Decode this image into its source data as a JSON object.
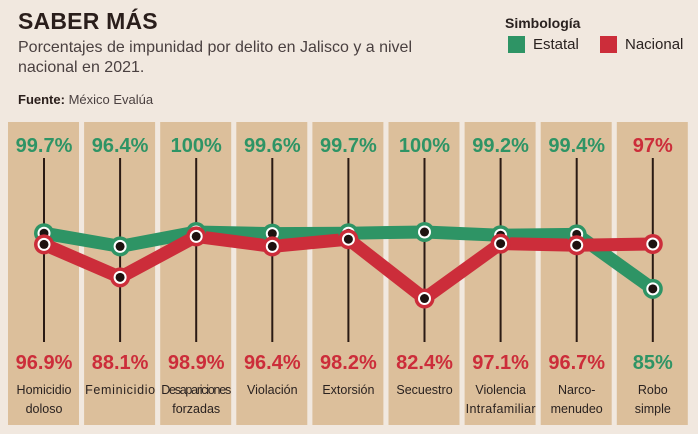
{
  "header": {
    "title": "SABER MÁS",
    "subtitle": "Porcentajes de impunidad por delito en Jalisco y a nivel nacional en 2021.",
    "source_label": "Fuente:",
    "source_value": "México Evalúa"
  },
  "legend": {
    "title": "Simbología",
    "items": [
      {
        "label": "Estatal",
        "color": "#2e9465"
      },
      {
        "label": "Nacional",
        "color": "#cc2d3a"
      }
    ]
  },
  "colors": {
    "estatal": "#2e9465",
    "nacional": "#cc2d3a",
    "column": "#dcbf9b",
    "background": "#f1e8df",
    "stem": "#2a1a14"
  },
  "chart_data": {
    "type": "line",
    "title": "Porcentajes de impunidad por delito en Jalisco y a nivel nacional en 2021",
    "categories": [
      [
        "Homicidio",
        "doloso"
      ],
      [
        "Feminicidio"
      ],
      [
        "Desapariciones",
        "forzadas"
      ],
      [
        "Violación"
      ],
      [
        "Extorsión"
      ],
      [
        "Secuestro"
      ],
      [
        "Violencia",
        "Intrafamiliar"
      ],
      [
        "Narco-",
        "menudeo"
      ],
      [
        "Robo",
        "simple"
      ]
    ],
    "series": [
      {
        "name": "Estatal",
        "values": [
          99.7,
          96.4,
          100,
          99.6,
          99.7,
          100,
          99.2,
          99.4,
          85
        ]
      },
      {
        "name": "Nacional",
        "values": [
          96.9,
          88.1,
          98.9,
          96.4,
          98.2,
          82.4,
          97.1,
          96.7,
          97
        ]
      }
    ],
    "top_labels": [
      "99.7%",
      "96.4%",
      "100%",
      "99.6%",
      "99.7%",
      "100%",
      "99.2%",
      "99.4%",
      "97%"
    ],
    "top_label_series": [
      "Estatal",
      "Estatal",
      "Estatal",
      "Estatal",
      "Estatal",
      "Estatal",
      "Estatal",
      "Estatal",
      "Nacional"
    ],
    "bottom_labels": [
      "96.9%",
      "88.1%",
      "98.9%",
      "96.4%",
      "98.2%",
      "82.4%",
      "97.1%",
      "96.7%",
      "85%"
    ],
    "bottom_label_series": [
      "Nacional",
      "Nacional",
      "Nacional",
      "Nacional",
      "Nacional",
      "Nacional",
      "Nacional",
      "Nacional",
      "Estatal"
    ],
    "xlabel": "",
    "ylabel": "",
    "grid": false,
    "legend_position": "top-right"
  }
}
